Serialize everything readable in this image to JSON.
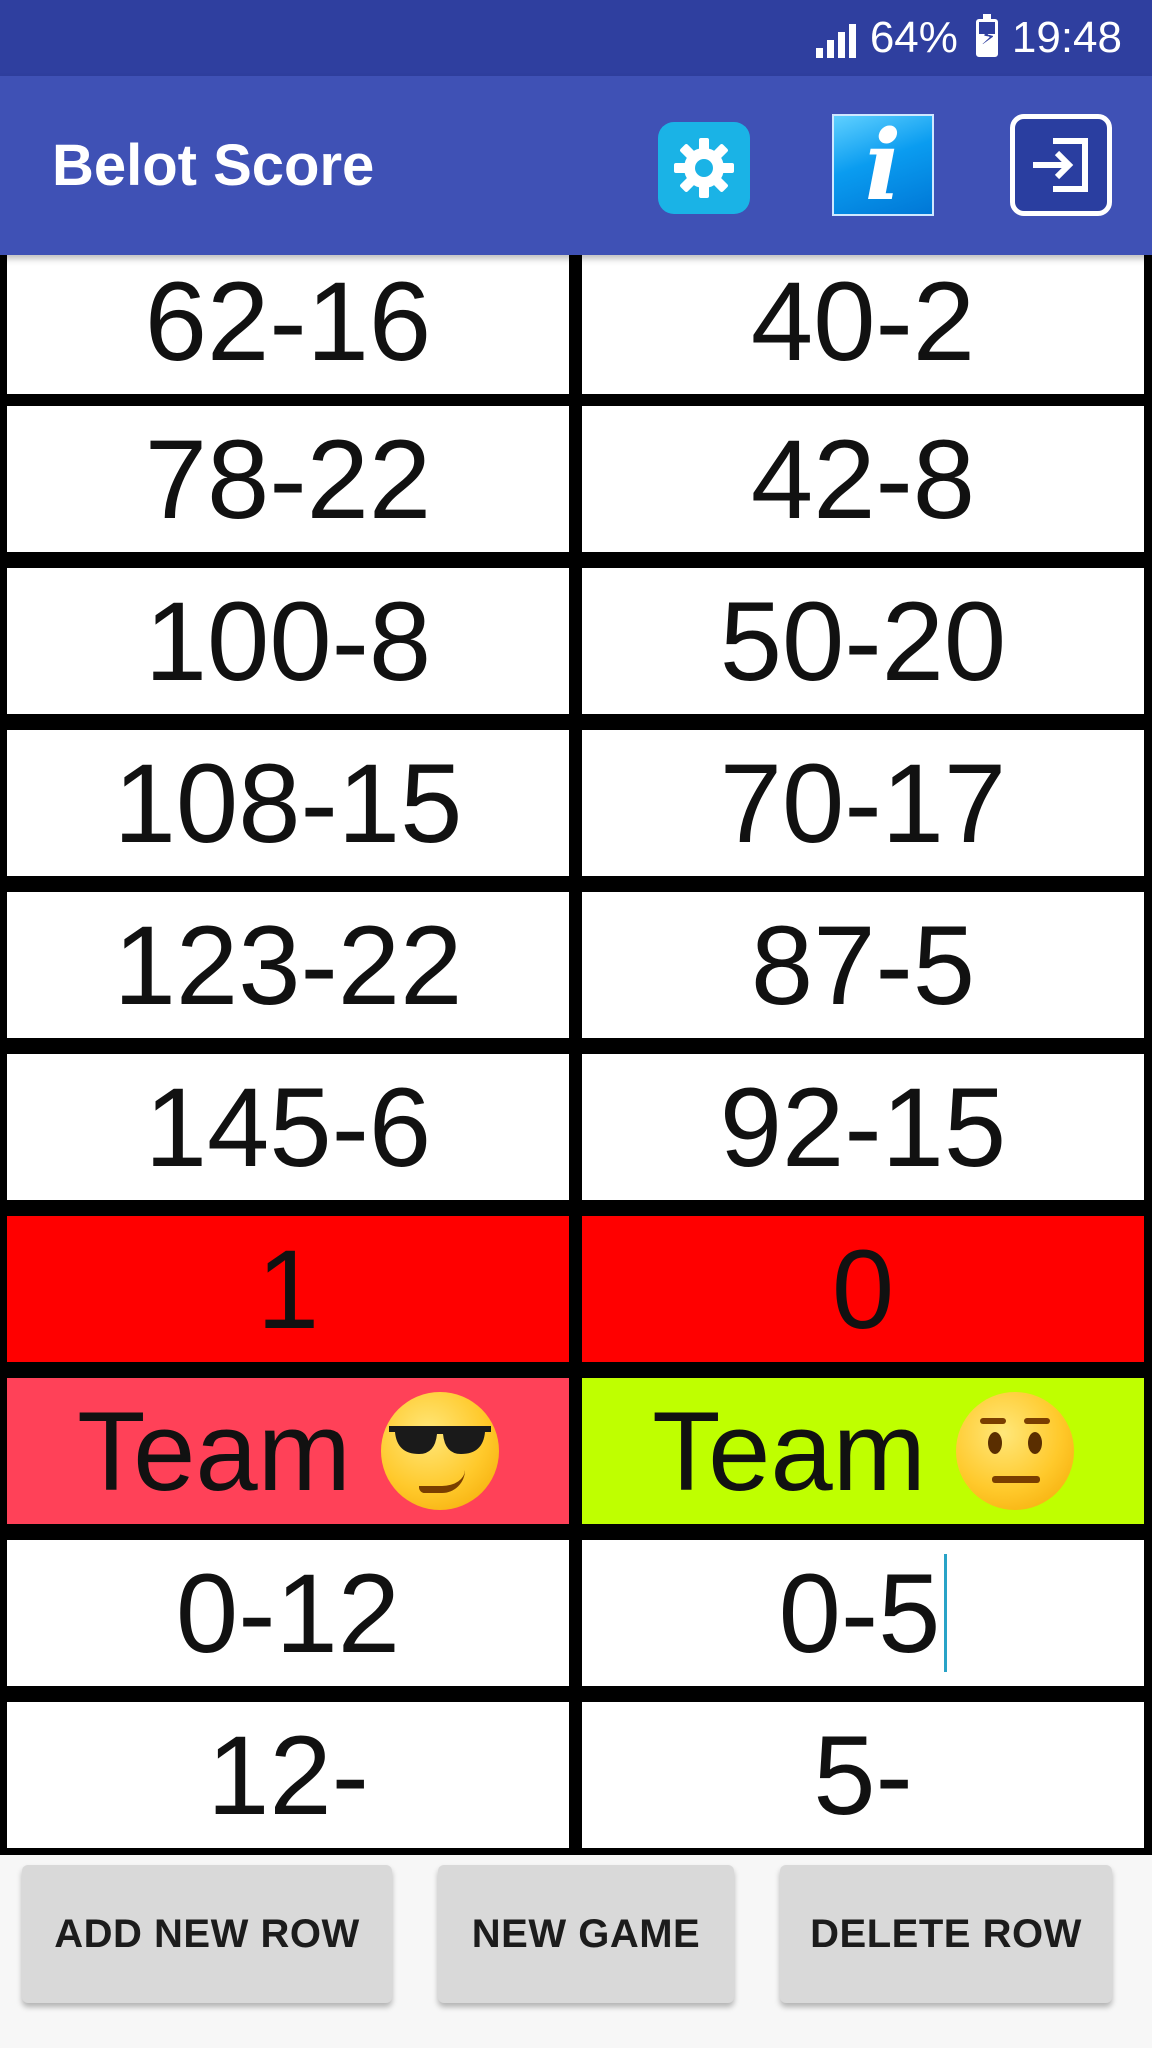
{
  "status_bar": {
    "battery": "64%",
    "time": "19:48",
    "icons": [
      "signal-icon",
      "battery-charging-icon"
    ]
  },
  "app_bar": {
    "title": "Belot Score",
    "actions": [
      {
        "name": "settings",
        "icon": "gear-icon",
        "color": "#1ab3e6"
      },
      {
        "name": "info",
        "icon": "info-icon",
        "label": "i",
        "color": "#0a9cf0"
      },
      {
        "name": "exit",
        "icon": "exit-icon"
      }
    ]
  },
  "table": {
    "rows": [
      [
        "62-16",
        "40-2"
      ],
      [
        "78-22",
        "42-8"
      ],
      [
        "100-8",
        "50-20"
      ],
      [
        "108-15",
        "70-17"
      ],
      [
        "123-22",
        "87-5"
      ],
      [
        "145-6",
        "92-15"
      ]
    ],
    "games_won": [
      "1",
      "0"
    ],
    "games_won_color": "#ff0000",
    "teams": [
      {
        "label": "Team",
        "emoji": "smiling-face-with-sunglasses-icon",
        "color": "#ff4158"
      },
      {
        "label": "Team",
        "emoji": "neutral-face-icon",
        "color": "#bfff00"
      }
    ],
    "input_row": [
      "0-12",
      "0-5"
    ],
    "pending_row": [
      "12-",
      "5-"
    ]
  },
  "buttons": {
    "add_new_row": "ADD NEW ROW",
    "new_game": "NEW GAME",
    "delete_row": "DELETE ROW"
  }
}
